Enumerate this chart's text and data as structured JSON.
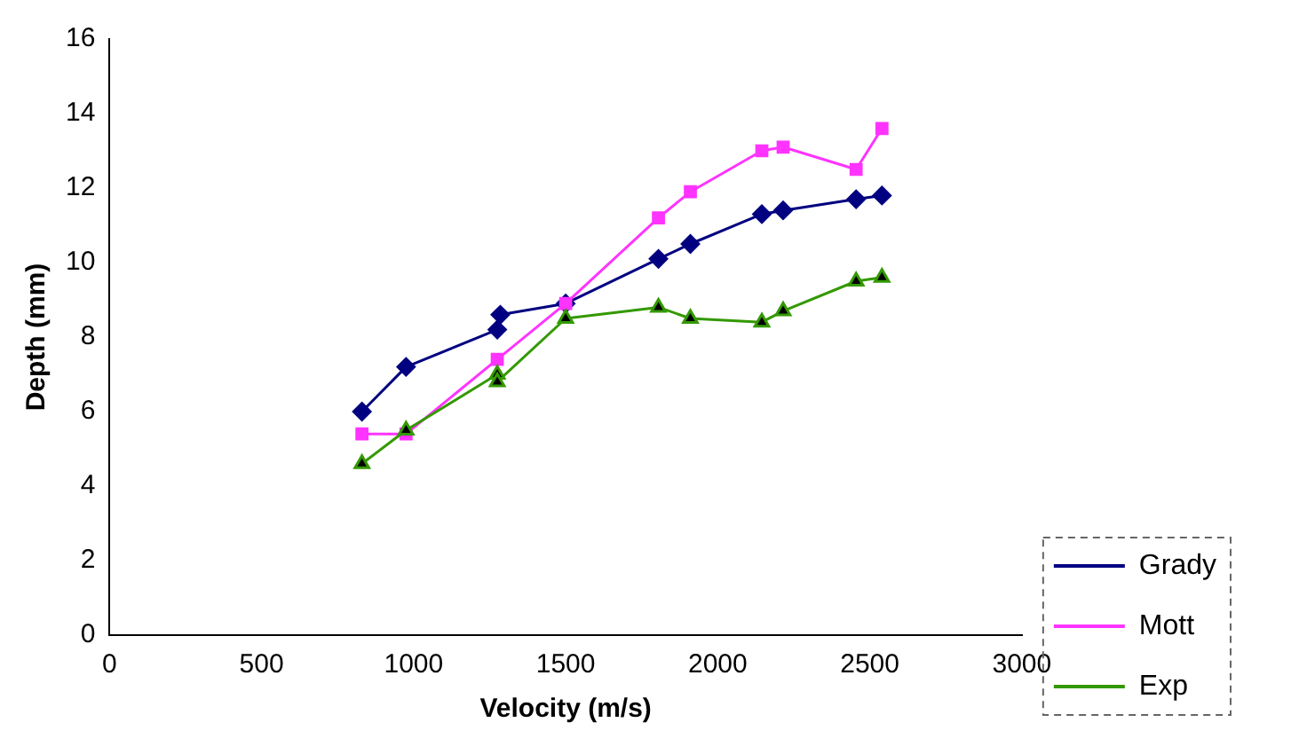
{
  "chart_data": {
    "type": "line",
    "xlabel": "Velocity (m/s)",
    "ylabel": "Depth (mm)",
    "xlim": [
      0,
      3000
    ],
    "xticks": [
      0,
      500,
      1000,
      1500,
      2000,
      2500,
      3000
    ],
    "ylim": [
      0,
      16
    ],
    "yticks": [
      0,
      2,
      4,
      6,
      8,
      10,
      12,
      14,
      16
    ],
    "grid": false,
    "legend": "bottom right",
    "line_style": "solid",
    "series": [
      {
        "name": "Grady",
        "color": "#000080",
        "marker": "diamond",
        "x": [
          830,
          975,
          1275,
          1285,
          1500,
          1805,
          1910,
          2145,
          2215,
          2455,
          2540
        ],
        "values": [
          6.0,
          7.2,
          8.2,
          8.6,
          8.9,
          10.1,
          10.5,
          11.3,
          11.4,
          11.7,
          11.8
        ]
      },
      {
        "name": "Mott",
        "color": "#ff33ff",
        "marker": "square",
        "x": [
          830,
          975,
          1275,
          1500,
          1805,
          1910,
          2145,
          2215,
          2455,
          2540
        ],
        "values": [
          5.4,
          5.4,
          7.4,
          8.9,
          11.2,
          11.9,
          13.0,
          13.1,
          12.5,
          13.6
        ]
      },
      {
        "name": "Exp",
        "color": "#339900",
        "marker": "triangle",
        "x": [
          830,
          975,
          1275,
          1275,
          1500,
          1805,
          1910,
          2145,
          2215,
          2455,
          2540
        ],
        "values": [
          4.6,
          5.5,
          7.0,
          6.8,
          8.5,
          8.8,
          8.5,
          8.4,
          8.7,
          9.5,
          9.6
        ]
      }
    ]
  }
}
